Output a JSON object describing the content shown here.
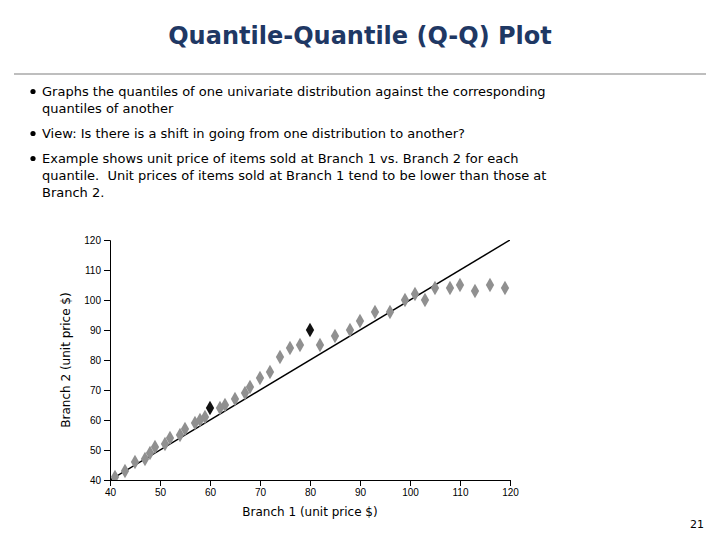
{
  "chart_data": {
    "type": "scatter",
    "title": "Quantile-Quantile (Q-Q) Plot",
    "annotations": [
      "Graphs the quantiles of one univariate distribution against the corresponding\nquantiles of another",
      "View: Is there is a shift in going from one distribution to another?",
      "Example shows unit price of items sold at Branch 1 vs. Branch 2 for each\nquantile.  Unit prices of items sold at Branch 1 tend to be lower than those at\nBranch 2."
    ],
    "page_number": "21",
    "xlabel": "Branch 1 (unit price $)",
    "ylabel": "Branch 2 (unit price $)",
    "xlim": [
      40,
      120
    ],
    "ylim": [
      40,
      120
    ],
    "xticks": [
      40,
      50,
      60,
      70,
      80,
      90,
      100,
      110,
      120
    ],
    "yticks": [
      40,
      50,
      60,
      70,
      80,
      90,
      100,
      110,
      120
    ],
    "grid": false,
    "series": [
      {
        "type": "scatter",
        "marker": "diamond",
        "x": [
          41,
          43,
          45,
          47,
          48,
          49,
          51,
          52,
          54,
          55,
          57,
          58,
          59,
          60,
          62,
          63,
          65,
          67,
          68,
          70,
          72,
          74,
          76,
          78,
          80,
          82,
          85,
          88,
          90,
          93,
          96,
          99,
          101,
          103,
          105,
          108,
          110,
          113,
          116,
          119
        ],
        "values": [
          41,
          43,
          46,
          47,
          49,
          51,
          52,
          54,
          55,
          57,
          59,
          60,
          61,
          64,
          64,
          65,
          67,
          69,
          71,
          74,
          76,
          81,
          84,
          85,
          90,
          85,
          88,
          90,
          93,
          96,
          96,
          100,
          102,
          100,
          104,
          104,
          105,
          103,
          105,
          104
        ],
        "colors": [
          "#909090",
          "#909090",
          "#909090",
          "#909090",
          "#909090",
          "#909090",
          "#909090",
          "#909090",
          "#909090",
          "#909090",
          "#909090",
          "#909090",
          "#909090",
          "#111111",
          "#909090",
          "#909090",
          "#909090",
          "#909090",
          "#909090",
          "#909090",
          "#909090",
          "#909090",
          "#909090",
          "#909090",
          "#111111",
          "#909090",
          "#909090",
          "#909090",
          "#909090",
          "#909090",
          "#909090",
          "#909090",
          "#909090",
          "#909090",
          "#909090",
          "#909090",
          "#909090",
          "#909090",
          "#909090",
          "#909090"
        ]
      },
      {
        "type": "line",
        "line_style": "solid",
        "color": "#000000",
        "x": [
          40,
          120
        ],
        "values": [
          40,
          120
        ]
      }
    ]
  }
}
